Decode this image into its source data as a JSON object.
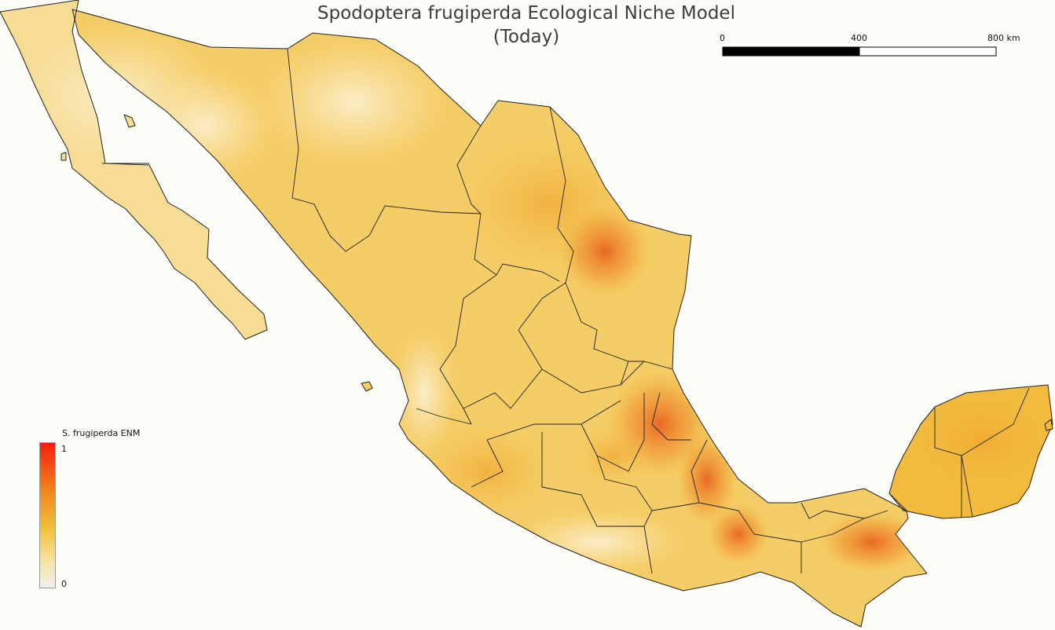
{
  "map": {
    "title_line1": "Spodoptera frugiperda Ecological Niche Model",
    "title_line2": "(Today)"
  },
  "scale_bar": {
    "labels": [
      "0",
      "400",
      "800 km"
    ]
  },
  "legend": {
    "title": "S. frugiperda ENM",
    "max_label": "1",
    "min_label": "0",
    "colors": {
      "low": "#f2f0ea",
      "mid_low": "#f6e2a6",
      "mid": "#f1c23a",
      "mid_high": "#f18a1e",
      "high": "#f81e0e"
    }
  },
  "palette": {
    "background": "#fdfdf8",
    "land_base": "#f7d98a",
    "land_light": "#f9e6b2",
    "land_orange": "#f2b43a",
    "hotspot": "#ec6d20",
    "boundary": "#222222"
  }
}
